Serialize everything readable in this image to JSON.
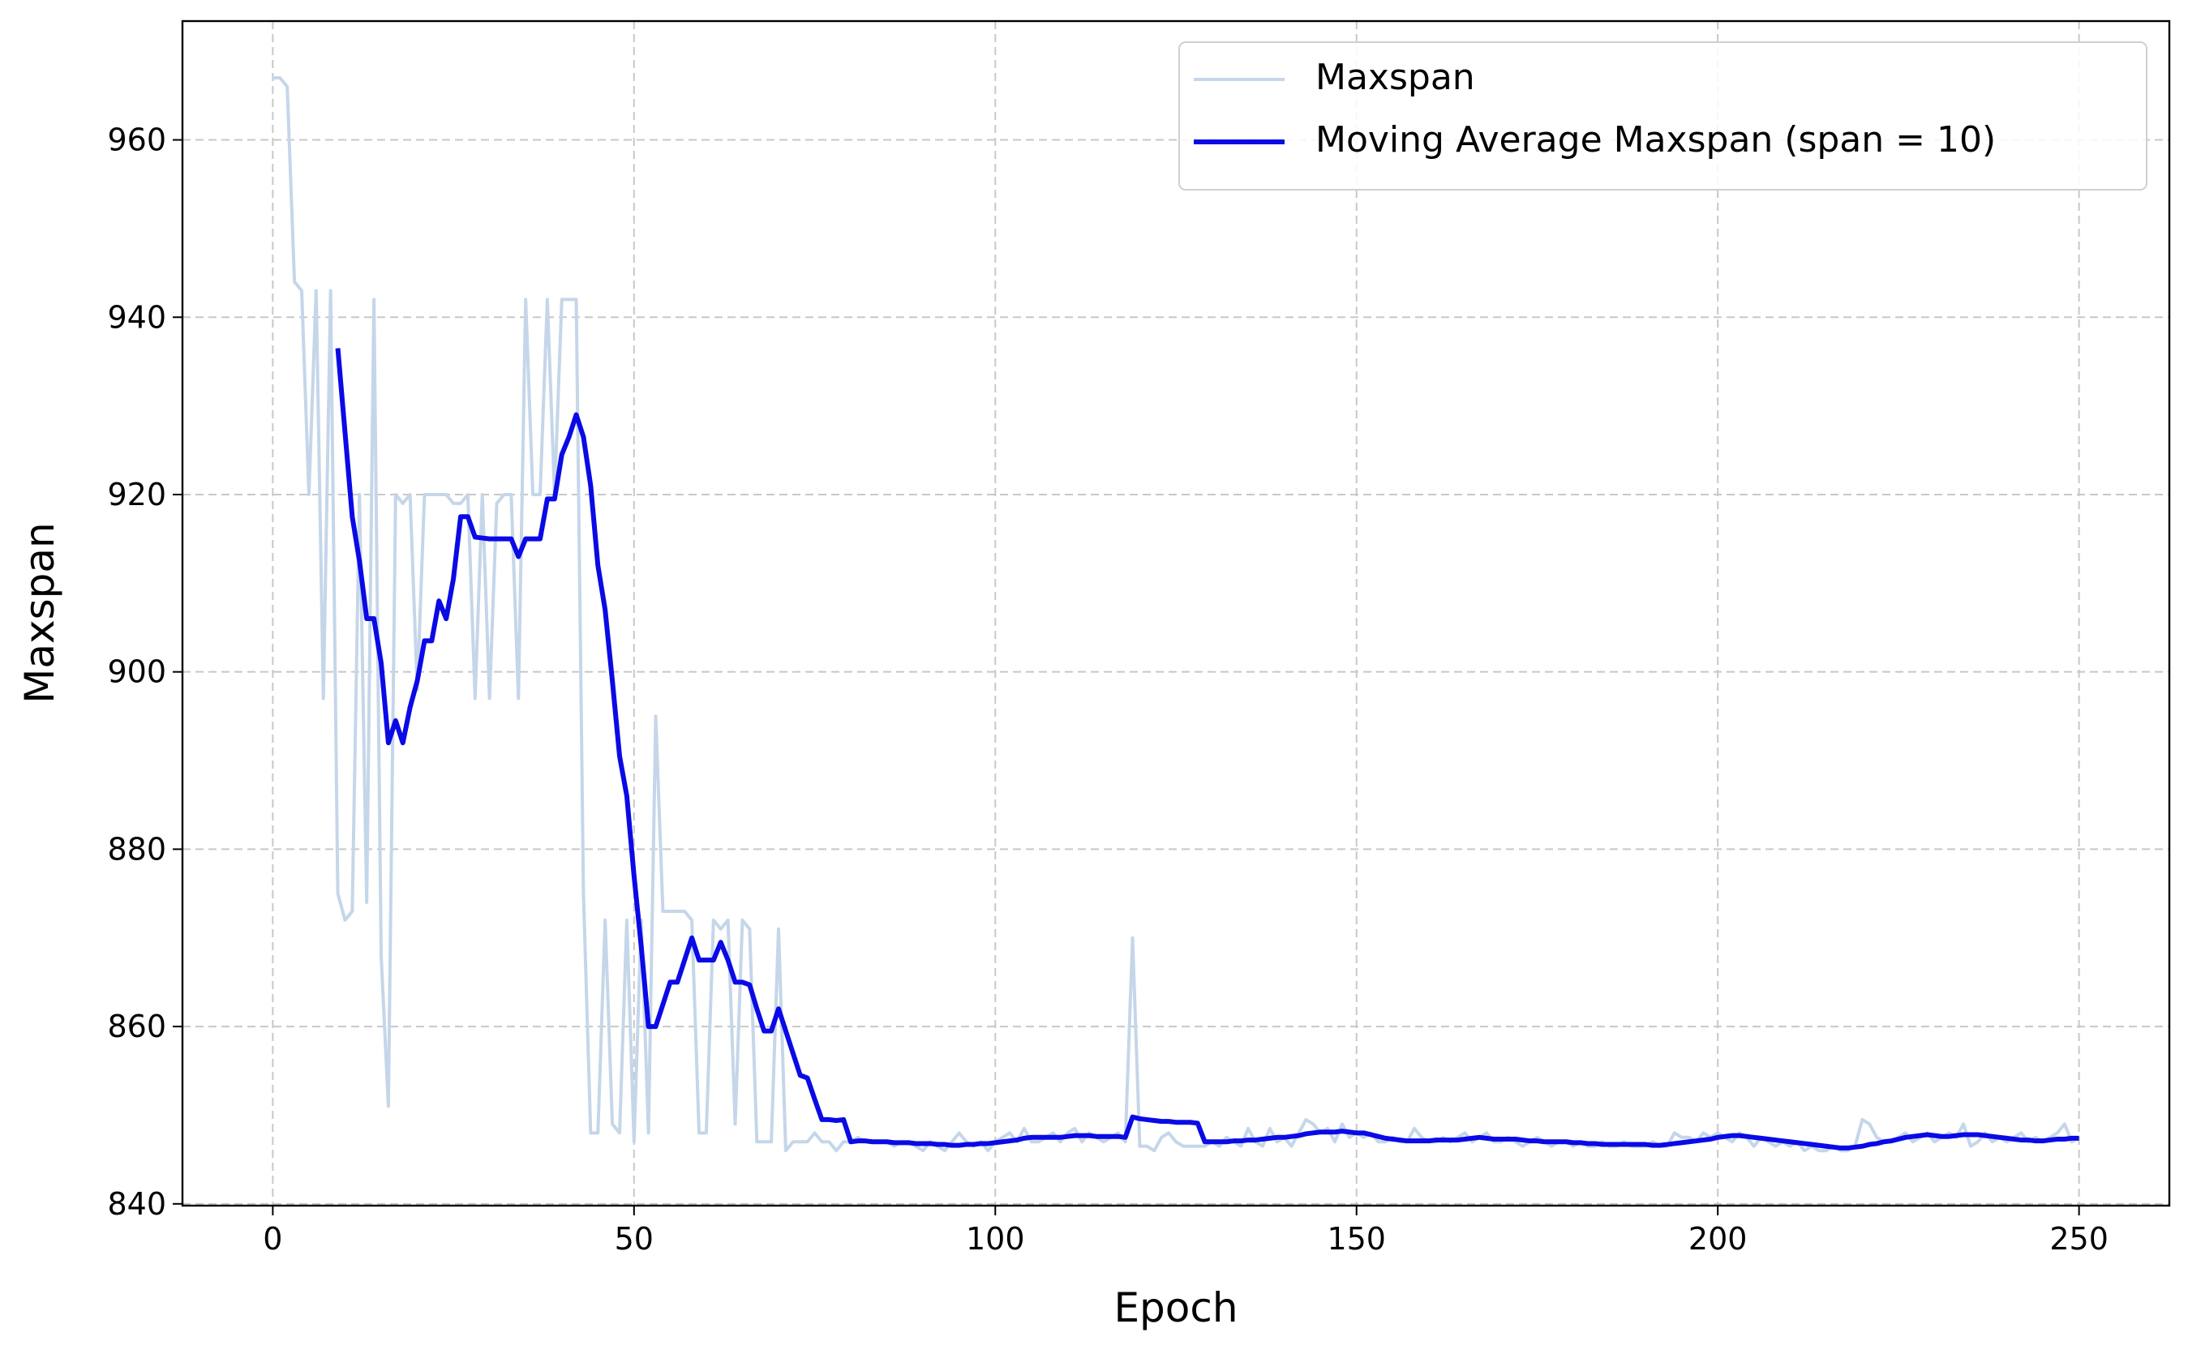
{
  "chart_data": {
    "type": "line",
    "xlabel": "Epoch",
    "ylabel": "Maxspan",
    "xlim": [
      -12.5,
      262.5
    ],
    "ylim": [
      839.8,
      973.4
    ],
    "xticks": [
      0,
      50,
      100,
      150,
      200,
      250
    ],
    "yticks": [
      840,
      860,
      880,
      900,
      920,
      940,
      960
    ],
    "grid": true,
    "legend": "upper right",
    "x": [
      0,
      1,
      2,
      3,
      4,
      5,
      6,
      7,
      8,
      9,
      10,
      11,
      12,
      13,
      14,
      15,
      16,
      17,
      18,
      19,
      20,
      21,
      22,
      23,
      24,
      25,
      26,
      27,
      28,
      29,
      30,
      31,
      32,
      33,
      34,
      35,
      36,
      37,
      38,
      39,
      40,
      41,
      42,
      43,
      44,
      45,
      46,
      47,
      48,
      49,
      50,
      51,
      52,
      53,
      54,
      55,
      56,
      57,
      58,
      59,
      60,
      61,
      62,
      63,
      64,
      65,
      66,
      67,
      68,
      69,
      70,
      71,
      72,
      73,
      74,
      75,
      76,
      77,
      78,
      79,
      80,
      81,
      82,
      83,
      84,
      85,
      86,
      87,
      88,
      89,
      90,
      91,
      92,
      93,
      94,
      95,
      96,
      97,
      98,
      99,
      100,
      101,
      102,
      103,
      104,
      105,
      106,
      107,
      108,
      109,
      110,
      111,
      112,
      113,
      114,
      115,
      116,
      117,
      118,
      119,
      120,
      121,
      122,
      123,
      124,
      125,
      126,
      127,
      128,
      129,
      130,
      131,
      132,
      133,
      134,
      135,
      136,
      137,
      138,
      139,
      140,
      141,
      142,
      143,
      144,
      145,
      146,
      147,
      148,
      149,
      150,
      151,
      152,
      153,
      154,
      155,
      156,
      157,
      158,
      159,
      160,
      161,
      162,
      163,
      164,
      165,
      166,
      167,
      168,
      169,
      170,
      171,
      172,
      173,
      174,
      175,
      176,
      177,
      178,
      179,
      180,
      181,
      182,
      183,
      184,
      185,
      186,
      187,
      188,
      189,
      190,
      191,
      192,
      193,
      194,
      195,
      196,
      197,
      198,
      199,
      200,
      201,
      202,
      203,
      204,
      205,
      206,
      207,
      208,
      209,
      210,
      211,
      212,
      213,
      214,
      215,
      216,
      217,
      218,
      219,
      220,
      221,
      222,
      223,
      224,
      225,
      226,
      227,
      228,
      229,
      230,
      231,
      232,
      233,
      234,
      235,
      236,
      237,
      238,
      239,
      240,
      241,
      242,
      243,
      244,
      245,
      246,
      247,
      248,
      249,
      250
    ],
    "series": [
      {
        "name": "Maxspan",
        "color": "#c5d6e9",
        "width": 4,
        "values": [
          967,
          967,
          966,
          944,
          943,
          920,
          943,
          897,
          943,
          875,
          872,
          873,
          920,
          874,
          942,
          868,
          851,
          920,
          919,
          920,
          898,
          920,
          920,
          920,
          920,
          919,
          919,
          920,
          897,
          920,
          897,
          919,
          920,
          920,
          897,
          942,
          920,
          920,
          942,
          920,
          942,
          942,
          942,
          875,
          848,
          848,
          872,
          849,
          848,
          872,
          847,
          872,
          848,
          895,
          873,
          873,
          873,
          873,
          872,
          848,
          848,
          872,
          871,
          872,
          849,
          872,
          871,
          847,
          847,
          847,
          871,
          846,
          847,
          847,
          847,
          848,
          847,
          847,
          846,
          847,
          847,
          847.5,
          847,
          847,
          847,
          847,
          846.5,
          847,
          847,
          846.5,
          846,
          847,
          846.5,
          846,
          847,
          848,
          847,
          846.5,
          847,
          846,
          847,
          847.5,
          848,
          847,
          848.5,
          847,
          847,
          847.5,
          848,
          847,
          848,
          848.5,
          847,
          848,
          847.5,
          847,
          847.5,
          848,
          847,
          870,
          846.5,
          846.5,
          846,
          847.5,
          848,
          847,
          846.5,
          846.5,
          846.5,
          846.5,
          847,
          846.5,
          847.5,
          847,
          846.5,
          848.5,
          847,
          846.5,
          848.5,
          847,
          847.5,
          846.5,
          848,
          849.5,
          849,
          848,
          848.5,
          847,
          849,
          847.5,
          848,
          847.5,
          848,
          847,
          847,
          847.5,
          847,
          847,
          848.5,
          847.5,
          847,
          847,
          847.5,
          847,
          847.5,
          848,
          847,
          847.5,
          848,
          847,
          847,
          847.5,
          847,
          846.5,
          847,
          847.5,
          847,
          846.5,
          847,
          847,
          846.5,
          847,
          846.5,
          846.5,
          847,
          846.5,
          846.5,
          847,
          846.5,
          846.5,
          846.5,
          847,
          846.5,
          846.5,
          848,
          847.5,
          847.5,
          847,
          848,
          847.5,
          848,
          847.5,
          847,
          848,
          847.5,
          846.5,
          847.5,
          847,
          846.5,
          847,
          846.5,
          847,
          846,
          846.5,
          846,
          846,
          846.5,
          846,
          846,
          846.5,
          849.5,
          849,
          847.5,
          847,
          847,
          847.5,
          848,
          847,
          847.5,
          848,
          847,
          847.5,
          848,
          847.5,
          849,
          846.5,
          847,
          848,
          847,
          847.5,
          847,
          847.5,
          848,
          847,
          847.5,
          847,
          847.5,
          848,
          849,
          847,
          847.5
        ]
      },
      {
        "name": "Moving Average Maxspan (span = 10)",
        "color": "#0a0ae6",
        "width": 6,
        "values": [
          null,
          null,
          null,
          null,
          null,
          null,
          null,
          null,
          null,
          936.5,
          927,
          917.5,
          912.5,
          906,
          906,
          901,
          892,
          894.5,
          892,
          896,
          899,
          903.5,
          903.5,
          908,
          906,
          910.5,
          917.5,
          917.5,
          915.2,
          915.1,
          915,
          915,
          915,
          915,
          913,
          915,
          915,
          915,
          919.5,
          919.5,
          924.5,
          926.5,
          929,
          926.5,
          921,
          912,
          907,
          899,
          890.5,
          886,
          877,
          869,
          860,
          860,
          862.5,
          865,
          865,
          867.5,
          870,
          867.5,
          867.5,
          867.5,
          869.5,
          867.5,
          865,
          865,
          864.7,
          862,
          859.5,
          859.5,
          862,
          859.5,
          857,
          854.5,
          854.2,
          851.8,
          849.5,
          849.5,
          849.4,
          849.5,
          847,
          847.1,
          847.1,
          847,
          847,
          847,
          846.9,
          846.9,
          846.9,
          846.8,
          846.8,
          846.8,
          846.7,
          846.7,
          846.6,
          846.6,
          846.7,
          846.7,
          846.8,
          846.8,
          846.9,
          847,
          847.1,
          847.2,
          847.4,
          847.5,
          847.5,
          847.5,
          847.5,
          847.5,
          847.6,
          847.7,
          847.7,
          847.7,
          847.6,
          847.6,
          847.6,
          847.6,
          847.5,
          849.8,
          849.6,
          849.5,
          849.4,
          849.3,
          849.3,
          849.2,
          849.2,
          849.2,
          849.1,
          847,
          847,
          847,
          847,
          847.1,
          847.1,
          847.2,
          847.2,
          847.3,
          847.4,
          847.5,
          847.5,
          847.6,
          847.7,
          847.9,
          848,
          848.1,
          848.1,
          848.1,
          848.2,
          848.1,
          848,
          848,
          847.8,
          847.6,
          847.4,
          847.3,
          847.2,
          847.1,
          847.1,
          847.1,
          847.1,
          847.2,
          847.2,
          847.2,
          847.2,
          847.3,
          847.4,
          847.5,
          847.4,
          847.3,
          847.3,
          847.3,
          847.3,
          847.2,
          847.1,
          847.1,
          847,
          847,
          847,
          847,
          846.9,
          846.9,
          846.8,
          846.8,
          846.7,
          846.7,
          846.7,
          846.7,
          846.7,
          846.7,
          846.7,
          846.6,
          846.6,
          846.7,
          846.8,
          846.9,
          847,
          847.1,
          847.2,
          847.3,
          847.5,
          847.6,
          847.7,
          847.7,
          847.6,
          847.5,
          847.4,
          847.3,
          847.2,
          847.1,
          847,
          846.9,
          846.8,
          846.7,
          846.6,
          846.5,
          846.4,
          846.3,
          846.3,
          846.4,
          846.5,
          846.7,
          846.8,
          847,
          847.1,
          847.3,
          847.5,
          847.6,
          847.7,
          847.8,
          847.7,
          847.6,
          847.6,
          847.7,
          847.8,
          847.8,
          847.8,
          847.7,
          847.6,
          847.5,
          847.4,
          847.3,
          847.2,
          847.2,
          847.1,
          847.1,
          847.2,
          847.3,
          847.3,
          847.4,
          847.4
        ]
      }
    ]
  }
}
